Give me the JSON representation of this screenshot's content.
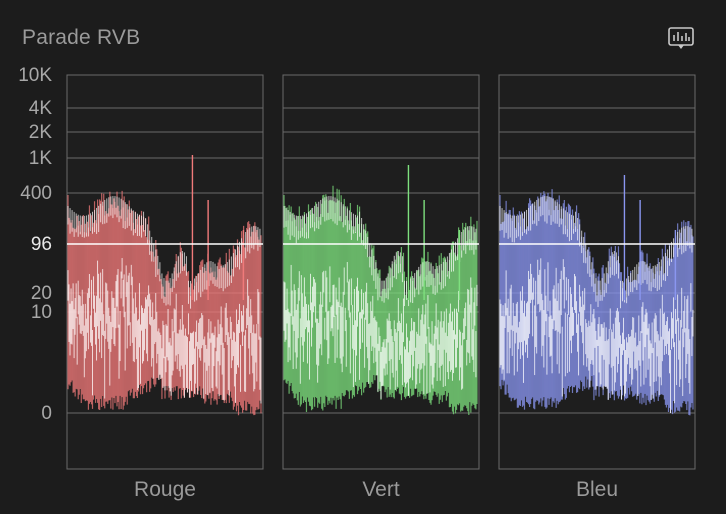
{
  "panel": {
    "title": "Parade RVB",
    "options_icon": "waveform-display-options-icon"
  },
  "chart_data": {
    "type": "area",
    "title": "Parade RVB",
    "y_scale": "log",
    "y_ticks": [
      "10K",
      "4K",
      "2K",
      "1K",
      "400",
      "96",
      "20",
      "10",
      "0"
    ],
    "reference_line": "96",
    "grid": true,
    "series": [
      {
        "name": "Rouge",
        "color": "#f07a7a"
      },
      {
        "name": "Vert",
        "color": "#7ee07e"
      },
      {
        "name": "Bleu",
        "color": "#8a96f0"
      }
    ]
  },
  "colors": {
    "background": "#1c1c1c",
    "grid": "#6a6a6a",
    "reference": "#ffffff"
  }
}
